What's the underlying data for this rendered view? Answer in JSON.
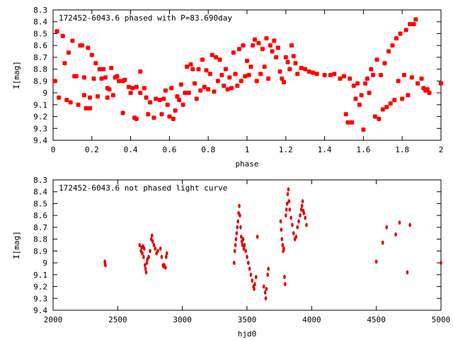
{
  "chart_data": [
    {
      "type": "scatter",
      "title": "172452-6043.6 phased with P=83.690day",
      "xlabel": "phase",
      "ylabel": "I[mag]",
      "xlim": [
        0,
        2
      ],
      "ylim": [
        9.4,
        8.3
      ],
      "y_inverted": true,
      "xticks": [
        "0",
        "0.2",
        "0.4",
        "0.6",
        "0.8",
        "1",
        "1.2",
        "1.4",
        "1.6",
        "1.8",
        "2"
      ],
      "yticks": [
        "8.3",
        "8.4",
        "8.5",
        "8.6",
        "8.7",
        "8.8",
        "8.9",
        "9",
        "9.1",
        "9.2",
        "9.3",
        "9.4"
      ],
      "grid": false,
      "marker_color": "#ff0000",
      "points": [
        [
          0.01,
          8.9
        ],
        [
          0.02,
          8.48
        ],
        [
          0.03,
          9.04
        ],
        [
          0.05,
          8.52
        ],
        [
          0.06,
          8.75
        ],
        [
          0.07,
          9.06
        ],
        [
          0.08,
          8.66
        ],
        [
          0.09,
          9.08
        ],
        [
          0.1,
          8.56
        ],
        [
          0.11,
          8.86
        ],
        [
          0.12,
          8.86
        ],
        [
          0.13,
          9.1
        ],
        [
          0.14,
          8.6
        ],
        [
          0.15,
          8.6
        ],
        [
          0.16,
          8.87
        ],
        [
          0.16,
          9.02
        ],
        [
          0.17,
          9.13
        ],
        [
          0.18,
          8.62
        ],
        [
          0.19,
          9.04
        ],
        [
          0.19,
          9.13
        ],
        [
          0.2,
          8.68
        ],
        [
          0.21,
          8.88
        ],
        [
          0.22,
          8.75
        ],
        [
          0.23,
          9.03
        ],
        [
          0.24,
          8.8
        ],
        [
          0.25,
          8.88
        ],
        [
          0.26,
          8.8
        ],
        [
          0.27,
          8.87
        ],
        [
          0.28,
          8.96
        ],
        [
          0.28,
          9.04
        ],
        [
          0.29,
          8.97
        ],
        [
          0.3,
          8.79
        ],
        [
          0.31,
          9.02
        ],
        [
          0.32,
          8.87
        ],
        [
          0.33,
          8.86
        ],
        [
          0.34,
          8.9
        ],
        [
          0.36,
          8.9
        ],
        [
          0.37,
          8.89
        ],
        [
          0.39,
          8.95
        ],
        [
          0.4,
          9.0
        ],
        [
          0.36,
          9.17
        ],
        [
          0.41,
          8.96
        ],
        [
          0.42,
          9.21
        ],
        [
          0.43,
          9.22
        ],
        [
          0.43,
          8.95
        ],
        [
          0.45,
          8.82
        ],
        [
          0.45,
          9.0
        ],
        [
          0.47,
          8.96
        ],
        [
          0.48,
          9.04
        ],
        [
          0.49,
          9.18
        ],
        [
          0.5,
          9.08
        ],
        [
          0.52,
          9.21
        ],
        [
          0.53,
          9.05
        ],
        [
          0.55,
          9.06
        ],
        [
          0.56,
          9.18
        ],
        [
          0.57,
          9.05
        ],
        [
          0.58,
          8.98
        ],
        [
          0.59,
          9.1
        ],
        [
          0.6,
          9.2
        ],
        [
          0.61,
          8.96
        ],
        [
          0.62,
          9.22
        ],
        [
          0.63,
          9.15
        ],
        [
          0.64,
          9.03
        ],
        [
          0.65,
          9.06
        ],
        [
          0.66,
          8.93
        ],
        [
          0.67,
          9.1
        ],
        [
          0.68,
          9.0
        ],
        [
          0.69,
          8.78
        ],
        [
          0.7,
          9.0
        ],
        [
          0.71,
          8.76
        ],
        [
          0.72,
          8.8
        ],
        [
          0.73,
          8.92
        ],
        [
          0.74,
          9.05
        ],
        [
          0.75,
          8.8
        ],
        [
          0.76,
          8.98
        ],
        [
          0.77,
          8.72
        ],
        [
          0.78,
          8.95
        ],
        [
          0.79,
          8.81
        ],
        [
          0.8,
          8.97
        ],
        [
          0.81,
          8.84
        ],
        [
          0.82,
          8.68
        ],
        [
          0.83,
          8.99
        ],
        [
          0.84,
          8.7
        ],
        [
          0.85,
          8.9
        ],
        [
          0.86,
          8.72
        ],
        [
          0.87,
          8.85
        ],
        [
          0.88,
          8.94
        ],
        [
          0.89,
          8.8
        ],
        [
          0.9,
          8.97
        ],
        [
          0.91,
          8.87
        ],
        [
          0.92,
          8.96
        ],
        [
          0.93,
          8.66
        ],
        [
          0.94,
          8.84
        ],
        [
          0.95,
          8.94
        ],
        [
          0.96,
          8.63
        ],
        [
          0.97,
          8.9
        ],
        [
          0.98,
          8.6
        ],
        [
          0.99,
          8.86
        ],
        [
          1.0,
          8.73
        ],
        [
          1.01,
          8.85
        ],
        [
          1.02,
          8.78
        ],
        [
          1.03,
          8.6
        ],
        [
          1.04,
          8.55
        ],
        [
          1.05,
          8.9
        ],
        [
          1.06,
          8.58
        ],
        [
          1.07,
          8.84
        ],
        [
          1.08,
          8.63
        ],
        [
          1.09,
          8.78
        ],
        [
          1.1,
          8.54
        ],
        [
          1.11,
          8.88
        ],
        [
          1.12,
          8.6
        ],
        [
          1.13,
          8.65
        ],
        [
          1.14,
          8.56
        ],
        [
          1.15,
          8.7
        ],
        [
          1.16,
          8.62
        ],
        [
          1.17,
          8.82
        ],
        [
          1.18,
          8.88
        ],
        [
          1.19,
          8.91
        ],
        [
          1.2,
          8.7
        ],
        [
          1.21,
          8.74
        ],
        [
          1.22,
          8.8
        ],
        [
          1.23,
          8.6
        ],
        [
          1.24,
          8.69
        ],
        [
          1.25,
          8.75
        ],
        [
          1.26,
          8.84
        ],
        [
          1.28,
          8.79
        ],
        [
          1.3,
          8.8
        ],
        [
          1.32,
          8.82
        ],
        [
          1.34,
          8.83
        ],
        [
          1.36,
          8.84
        ],
        [
          1.4,
          8.85
        ],
        [
          1.43,
          8.85
        ],
        [
          1.45,
          8.84
        ],
        [
          1.48,
          8.88
        ],
        [
          1.5,
          8.86
        ],
        [
          1.51,
          9.18
        ],
        [
          1.52,
          9.25
        ],
        [
          1.53,
          8.88
        ],
        [
          1.54,
          9.25
        ],
        [
          1.55,
          8.94
        ],
        [
          1.56,
          9.05
        ],
        [
          1.57,
          8.92
        ],
        [
          1.58,
          9.1
        ],
        [
          1.59,
          9.02
        ],
        [
          1.6,
          9.31
        ],
        [
          1.61,
          8.92
        ],
        [
          1.62,
          8.88
        ],
        [
          1.63,
          9.0
        ],
        [
          1.64,
          8.8
        ],
        [
          1.65,
          8.85
        ],
        [
          1.66,
          9.2
        ],
        [
          1.67,
          8.72
        ],
        [
          1.68,
          9.22
        ],
        [
          1.69,
          8.85
        ],
        [
          1.7,
          9.14
        ],
        [
          1.71,
          8.75
        ],
        [
          1.72,
          9.12
        ],
        [
          1.73,
          8.65
        ],
        [
          1.74,
          9.09
        ],
        [
          1.75,
          8.6
        ],
        [
          1.76,
          9.06
        ],
        [
          1.77,
          8.54
        ],
        [
          1.78,
          8.9
        ],
        [
          1.79,
          8.5
        ],
        [
          1.8,
          9.05
        ],
        [
          1.81,
          8.85
        ],
        [
          1.82,
          8.47
        ],
        [
          1.83,
          9.02
        ],
        [
          1.84,
          8.42
        ],
        [
          1.85,
          8.87
        ],
        [
          1.86,
          8.42
        ],
        [
          1.87,
          8.38
        ],
        [
          1.88,
          8.92
        ],
        [
          1.9,
          8.88
        ],
        [
          1.91,
          8.96
        ],
        [
          1.92,
          8.98
        ],
        [
          1.93,
          8.97
        ],
        [
          1.94,
          9.0
        ],
        [
          2.0,
          8.92
        ]
      ]
    },
    {
      "type": "scatter",
      "title": "172452-6043.6 not phased light curve",
      "xlabel": "hjd0",
      "ylabel": "I[mag]",
      "xlim": [
        2000,
        5000
      ],
      "ylim": [
        9.4,
        8.3
      ],
      "y_inverted": true,
      "xticks": [
        "2000",
        "2500",
        "3000",
        "3500",
        "4000",
        "4500",
        "5000"
      ],
      "yticks": [
        "8.3",
        "8.4",
        "8.5",
        "8.6",
        "8.7",
        "8.8",
        "8.9",
        "9",
        "9.1",
        "9.2",
        "9.3",
        "9.4"
      ],
      "grid": false,
      "marker_color": "#ff0000",
      "points": [
        [
          2400,
          8.99
        ],
        [
          2402,
          9.01
        ],
        [
          2405,
          9.02
        ],
        [
          2670,
          8.85
        ],
        [
          2680,
          8.9
        ],
        [
          2685,
          8.87
        ],
        [
          2690,
          8.92
        ],
        [
          2695,
          8.86
        ],
        [
          2700,
          8.95
        ],
        [
          2705,
          8.88
        ],
        [
          2710,
          9.02
        ],
        [
          2715,
          9.05
        ],
        [
          2720,
          9.08
        ],
        [
          2725,
          9.0
        ],
        [
          2730,
          8.97
        ],
        [
          2740,
          8.95
        ],
        [
          2750,
          8.9
        ],
        [
          2760,
          8.8
        ],
        [
          2765,
          8.77
        ],
        [
          2770,
          8.82
        ],
        [
          2780,
          8.85
        ],
        [
          2790,
          8.88
        ],
        [
          2800,
          8.92
        ],
        [
          2810,
          8.9
        ],
        [
          2830,
          8.88
        ],
        [
          2840,
          8.95
        ],
        [
          2850,
          9.02
        ],
        [
          2855,
          9.03
        ],
        [
          2860,
          9.02
        ],
        [
          2870,
          9.04
        ],
        [
          2875,
          8.95
        ],
        [
          2880,
          8.92
        ],
        [
          3400,
          9.0
        ],
        [
          3405,
          8.9
        ],
        [
          3410,
          8.85
        ],
        [
          3415,
          8.8
        ],
        [
          3420,
          8.75
        ],
        [
          3425,
          8.7
        ],
        [
          3430,
          8.65
        ],
        [
          3435,
          8.58
        ],
        [
          3440,
          8.52
        ],
        [
          3445,
          8.6
        ],
        [
          3450,
          8.7
        ],
        [
          3455,
          8.78
        ],
        [
          3460,
          8.82
        ],
        [
          3465,
          8.85
        ],
        [
          3470,
          8.8
        ],
        [
          3475,
          8.88
        ],
        [
          3480,
          8.85
        ],
        [
          3490,
          8.9
        ],
        [
          3500,
          8.95
        ],
        [
          3510,
          9.0
        ],
        [
          3520,
          9.05
        ],
        [
          3530,
          9.1
        ],
        [
          3540,
          9.15
        ],
        [
          3550,
          9.2
        ],
        [
          3555,
          9.22
        ],
        [
          3560,
          9.18
        ],
        [
          3570,
          9.12
        ],
        [
          3580,
          8.78
        ],
        [
          3630,
          9.2
        ],
        [
          3640,
          9.25
        ],
        [
          3645,
          9.3
        ],
        [
          3650,
          9.22
        ],
        [
          3660,
          9.1
        ],
        [
          3665,
          9.05
        ],
        [
          3760,
          8.65
        ],
        [
          3765,
          8.72
        ],
        [
          3770,
          8.8
        ],
        [
          3775,
          8.85
        ],
        [
          3780,
          8.9
        ],
        [
          3785,
          8.88
        ],
        [
          3790,
          9.12
        ],
        [
          3795,
          9.18
        ],
        [
          3800,
          8.6
        ],
        [
          3805,
          8.55
        ],
        [
          3810,
          8.5
        ],
        [
          3815,
          8.42
        ],
        [
          3820,
          8.38
        ],
        [
          3825,
          8.48
        ],
        [
          3830,
          8.55
        ],
        [
          3840,
          8.62
        ],
        [
          3850,
          8.68
        ],
        [
          3860,
          8.75
        ],
        [
          3870,
          8.8
        ],
        [
          3880,
          8.78
        ],
        [
          3890,
          8.7
        ],
        [
          3900,
          8.65
        ],
        [
          3910,
          8.6
        ],
        [
          3920,
          8.55
        ],
        [
          3925,
          8.52
        ],
        [
          3930,
          8.48
        ],
        [
          3935,
          8.56
        ],
        [
          3940,
          8.58
        ],
        [
          3950,
          8.62
        ],
        [
          3960,
          8.68
        ],
        [
          4500,
          8.99
        ],
        [
          4550,
          8.83
        ],
        [
          4580,
          8.7
        ],
        [
          4650,
          8.76
        ],
        [
          4680,
          8.66
        ],
        [
          4740,
          9.08
        ],
        [
          4760,
          8.68
        ],
        [
          5000,
          9.0
        ]
      ]
    }
  ]
}
